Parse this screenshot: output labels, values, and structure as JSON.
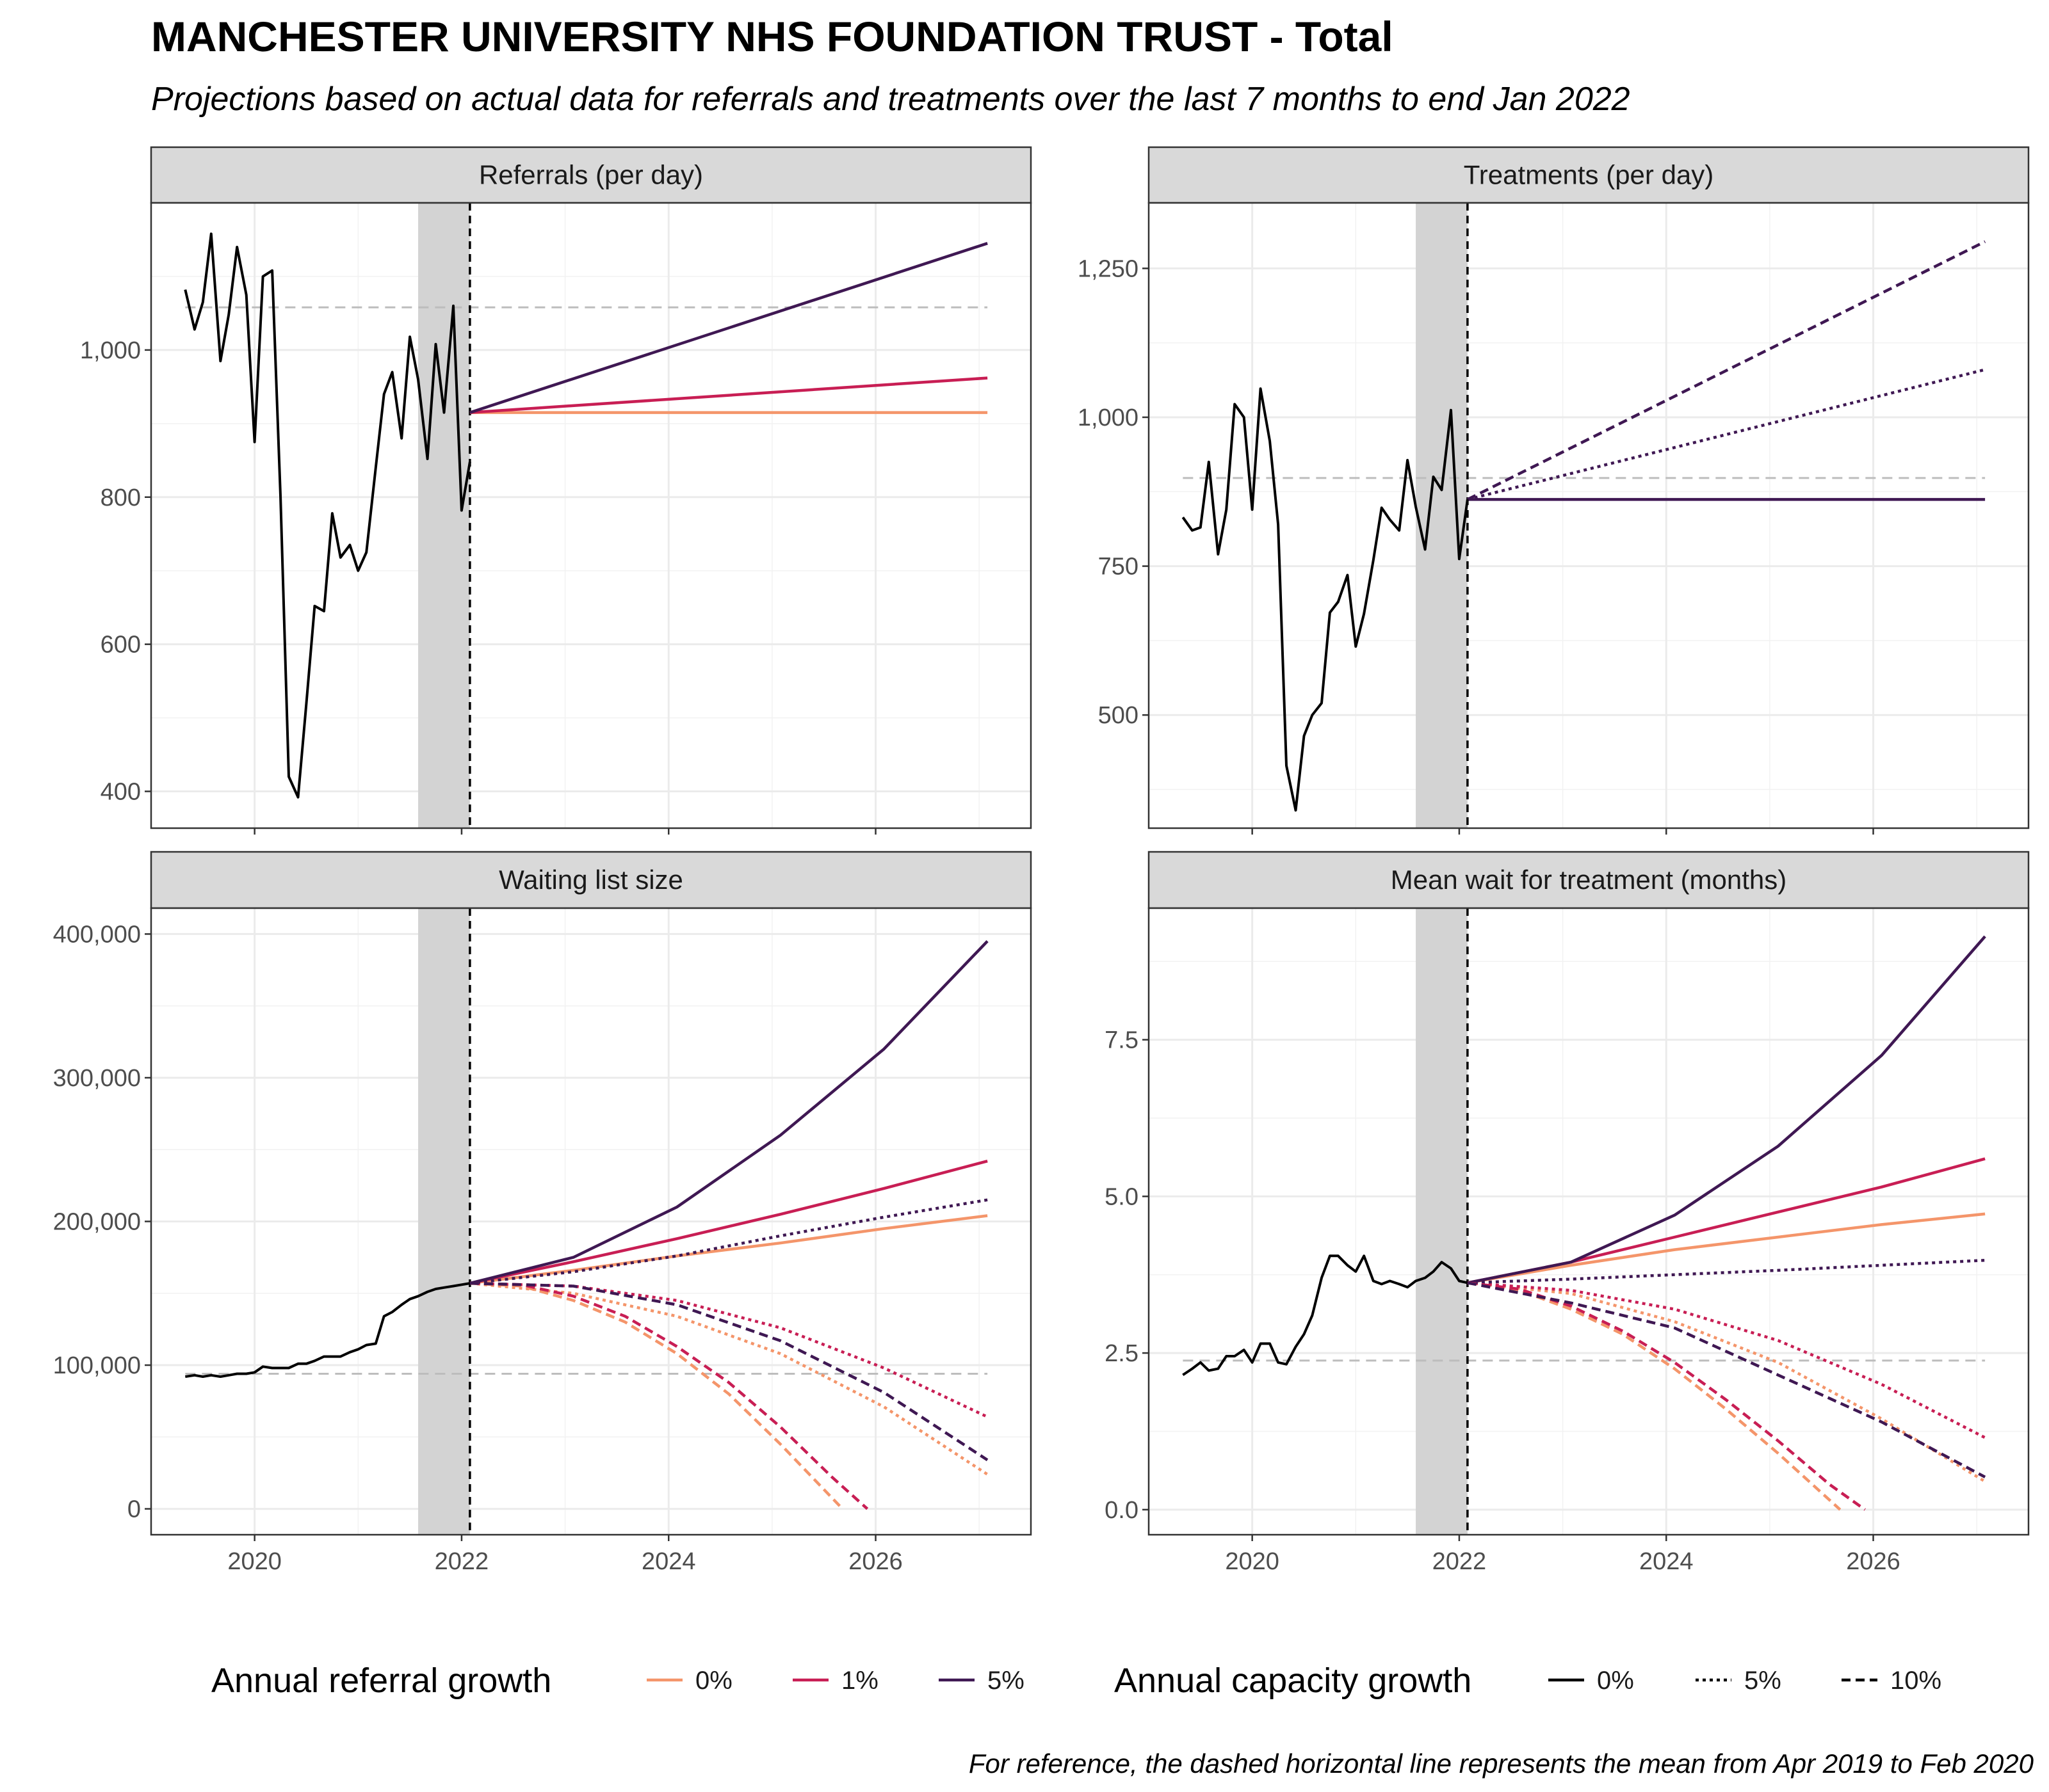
{
  "title": "MANCHESTER UNIVERSITY NHS FOUNDATION TRUST - Total",
  "subtitle": "Projections based on actual data for referrals and treatments over the last 7 months to end Jan 2022",
  "caption": "For reference, the dashed horizontal line represents the mean from Apr 2019 to Feb 2020",
  "legend": {
    "referral": {
      "title": "Annual referral growth",
      "items": [
        {
          "label": "0%",
          "color": "#F4956A"
        },
        {
          "label": "1%",
          "color": "#C81E54"
        },
        {
          "label": "5%",
          "color": "#3F1853"
        }
      ]
    },
    "capacity": {
      "title": "Annual capacity growth",
      "items": [
        {
          "label": "0%",
          "dash": "solid"
        },
        {
          "label": "5%",
          "dash": "dotted"
        },
        {
          "label": "10%",
          "dash": "dashed"
        }
      ]
    }
  },
  "chart_data": [
    {
      "type": "line",
      "title": "Referrals (per day)",
      "x_range": [
        2019.0,
        2027.5
      ],
      "ylim": [
        350,
        1200
      ],
      "x_ticks": [
        2020,
        2022,
        2024,
        2026
      ],
      "x_tick_labels": [
        "2020",
        "2022",
        "2024",
        "2026"
      ],
      "y_ticks": [
        400,
        600,
        800,
        1000
      ],
      "y_tick_labels": [
        "400",
        "600",
        "800",
        "1,000"
      ],
      "shaded_period": [
        2021.58,
        2022.08
      ],
      "projection_start": 2022.08,
      "reference_line": {
        "y": 1058,
        "x": [
          2019.33,
          2027.08
        ]
      },
      "actual": {
        "x": [
          2019.33,
          2019.42,
          2019.5,
          2019.58,
          2019.67,
          2019.75,
          2019.83,
          2019.92,
          2020.0,
          2020.08,
          2020.17,
          2020.25,
          2020.33,
          2020.42,
          2020.5,
          2020.58,
          2020.67,
          2020.75,
          2020.83,
          2020.92,
          2021.0,
          2021.08,
          2021.17,
          2021.25,
          2021.33,
          2021.42,
          2021.5,
          2021.58,
          2021.67,
          2021.75,
          2021.83,
          2021.92,
          2022.0,
          2022.08
        ],
        "y": [
          1082,
          1028,
          1065,
          1158,
          985,
          1048,
          1140,
          1075,
          875,
          1100,
          1108,
          800,
          420,
          392,
          520,
          652,
          645,
          778,
          718,
          735,
          700,
          725,
          840,
          940,
          970,
          880,
          1018,
          960,
          852,
          1008,
          915,
          1060,
          782,
          848
        ]
      },
      "projections": [
        {
          "referral_growth": "0%",
          "capacity_growth": "0%",
          "x": [
            2022.08,
            2027.08
          ],
          "y": [
            915,
            915
          ]
        },
        {
          "referral_growth": "1%",
          "capacity_growth": "0%",
          "x": [
            2022.08,
            2027.08
          ],
          "y": [
            915,
            962
          ]
        },
        {
          "referral_growth": "5%",
          "capacity_growth": "0%",
          "x": [
            2022.08,
            2027.08
          ],
          "y": [
            915,
            1145
          ]
        }
      ]
    },
    {
      "type": "line",
      "title": "Treatments (per day)",
      "x_range": [
        2019.0,
        2027.5
      ],
      "ylim": [
        310,
        1360
      ],
      "x_ticks": [
        2020,
        2022,
        2024,
        2026
      ],
      "x_tick_labels": [
        "2020",
        "2022",
        "2024",
        "2026"
      ],
      "y_ticks": [
        500,
        750,
        1000,
        1250
      ],
      "y_tick_labels": [
        "500",
        "750",
        "1,000",
        "1,250"
      ],
      "shaded_period": [
        2021.58,
        2022.08
      ],
      "projection_start": 2022.08,
      "reference_line": {
        "y": 898,
        "x": [
          2019.33,
          2027.08
        ]
      },
      "actual": {
        "x": [
          2019.33,
          2019.42,
          2019.5,
          2019.58,
          2019.67,
          2019.75,
          2019.83,
          2019.92,
          2020.0,
          2020.08,
          2020.17,
          2020.25,
          2020.33,
          2020.42,
          2020.5,
          2020.58,
          2020.67,
          2020.75,
          2020.83,
          2020.92,
          2021.0,
          2021.08,
          2021.17,
          2021.25,
          2021.33,
          2021.42,
          2021.5,
          2021.58,
          2021.67,
          2021.75,
          2021.83,
          2021.92,
          2022.0,
          2022.08
        ],
        "y": [
          832,
          810,
          815,
          925,
          770,
          845,
          1022,
          1000,
          845,
          1048,
          960,
          820,
          415,
          340,
          465,
          500,
          520,
          672,
          690,
          735,
          615,
          670,
          760,
          848,
          828,
          810,
          928,
          850,
          778,
          900,
          878,
          1012,
          762,
          862
        ]
      },
      "projections": [
        {
          "referral_growth": "5%",
          "capacity_growth": "0%",
          "x": [
            2022.08,
            2027.08
          ],
          "y": [
            862,
            862
          ]
        },
        {
          "referral_growth": "5%",
          "capacity_growth": "5%",
          "x": [
            2022.08,
            2027.08
          ],
          "y": [
            862,
            1080
          ]
        },
        {
          "referral_growth": "5%",
          "capacity_growth": "10%",
          "x": [
            2022.08,
            2027.08
          ],
          "y": [
            862,
            1295
          ]
        }
      ]
    },
    {
      "type": "line",
      "title": "Waiting list size",
      "x_range": [
        2019.0,
        2027.5
      ],
      "ylim": [
        -18000,
        418000
      ],
      "x_ticks": [
        2020,
        2022,
        2024,
        2026
      ],
      "x_tick_labels": [
        "2020",
        "2022",
        "2024",
        "2026"
      ],
      "y_ticks": [
        0,
        100000,
        200000,
        300000,
        400000
      ],
      "y_tick_labels": [
        "0",
        "100,000",
        "200,000",
        "300,000",
        "400,000"
      ],
      "shaded_period": [
        2021.58,
        2022.08
      ],
      "projection_start": 2022.08,
      "reference_line": {
        "y": 94000,
        "x": [
          2019.33,
          2027.08
        ]
      },
      "actual": {
        "x": [
          2019.33,
          2019.42,
          2019.5,
          2019.58,
          2019.67,
          2019.75,
          2019.83,
          2019.92,
          2020.0,
          2020.08,
          2020.17,
          2020.25,
          2020.33,
          2020.42,
          2020.5,
          2020.58,
          2020.67,
          2020.75,
          2020.83,
          2020.92,
          2021.0,
          2021.08,
          2021.17,
          2021.25,
          2021.33,
          2021.42,
          2021.5,
          2021.58,
          2021.67,
          2021.75,
          2021.83,
          2021.92,
          2022.0,
          2022.08
        ],
        "y": [
          92000,
          93000,
          92000,
          93000,
          92000,
          93000,
          94000,
          94000,
          95000,
          99000,
          98000,
          98000,
          98000,
          101000,
          101000,
          103000,
          106000,
          106000,
          106000,
          109000,
          111000,
          114000,
          115000,
          134000,
          137000,
          142000,
          146000,
          148000,
          151000,
          153000,
          154000,
          155000,
          156000,
          157000
        ]
      },
      "projections": [
        {
          "referral_growth": "0%",
          "capacity_growth": "0%",
          "x": [
            2022.08,
            2023.08,
            2024.08,
            2025.08,
            2026.08,
            2027.08
          ],
          "y": [
            157000,
            166000,
            176000,
            185000,
            195000,
            204000
          ]
        },
        {
          "referral_growth": "1%",
          "capacity_growth": "0%",
          "x": [
            2022.08,
            2023.08,
            2024.08,
            2025.08,
            2026.08,
            2027.08
          ],
          "y": [
            157000,
            172000,
            188000,
            205000,
            223000,
            242000
          ]
        },
        {
          "referral_growth": "5%",
          "capacity_growth": "0%",
          "x": [
            2022.08,
            2023.08,
            2024.08,
            2025.08,
            2026.08,
            2027.08
          ],
          "y": [
            157000,
            175000,
            210000,
            260000,
            320000,
            395000
          ]
        },
        {
          "referral_growth": "0%",
          "capacity_growth": "5%",
          "x": [
            2022.08,
            2023.08,
            2024.08,
            2025.08,
            2026.08,
            2027.08
          ],
          "y": [
            157000,
            150000,
            134000,
            108000,
            71000,
            24000
          ]
        },
        {
          "referral_growth": "1%",
          "capacity_growth": "5%",
          "x": [
            2022.08,
            2023.08,
            2024.08,
            2025.08,
            2026.08,
            2027.08
          ],
          "y": [
            157000,
            155000,
            145000,
            126000,
            98000,
            64000
          ]
        },
        {
          "referral_growth": "5%",
          "capacity_growth": "5%",
          "x": [
            2022.08,
            2023.08,
            2024.08,
            2025.08,
            2026.08,
            2027.08
          ],
          "y": [
            157000,
            165000,
            176000,
            190000,
            203000,
            215000
          ]
        },
        {
          "referral_growth": "0%",
          "capacity_growth": "10%",
          "x": [
            2022.08,
            2022.58,
            2023.08,
            2023.58,
            2024.08,
            2024.58,
            2025.08,
            2025.68
          ],
          "y": [
            157000,
            155000,
            145000,
            130000,
            108000,
            80000,
            45000,
            0
          ]
        },
        {
          "referral_growth": "1%",
          "capacity_growth": "10%",
          "x": [
            2022.08,
            2022.58,
            2023.08,
            2023.58,
            2024.08,
            2024.58,
            2025.08,
            2025.58,
            2025.92
          ],
          "y": [
            157000,
            156000,
            148000,
            134000,
            113000,
            88000,
            57000,
            22000,
            0
          ]
        },
        {
          "referral_growth": "5%",
          "capacity_growth": "10%",
          "x": [
            2022.08,
            2023.08,
            2024.08,
            2025.08,
            2026.08,
            2027.08
          ],
          "y": [
            157000,
            155000,
            142000,
            117000,
            81000,
            34000
          ]
        }
      ]
    },
    {
      "type": "line",
      "title": "Mean wait for treatment (months)",
      "x_range": [
        2019.0,
        2027.5
      ],
      "ylim": [
        -0.4,
        9.6
      ],
      "x_ticks": [
        2020,
        2022,
        2024,
        2026
      ],
      "x_tick_labels": [
        "2020",
        "2022",
        "2024",
        "2026"
      ],
      "y_ticks": [
        0,
        2.5,
        5,
        7.5
      ],
      "y_tick_labels": [
        "0.0",
        "2.5",
        "5.0",
        "7.5"
      ],
      "shaded_period": [
        2021.58,
        2022.08
      ],
      "projection_start": 2022.08,
      "reference_line": {
        "y": 2.38,
        "x": [
          2019.33,
          2027.08
        ]
      },
      "actual": {
        "x": [
          2019.33,
          2019.42,
          2019.5,
          2019.58,
          2019.67,
          2019.75,
          2019.83,
          2019.92,
          2020.0,
          2020.08,
          2020.17,
          2020.25,
          2020.33,
          2020.42,
          2020.5,
          2020.58,
          2020.67,
          2020.75,
          2020.83,
          2020.92,
          2021.0,
          2021.08,
          2021.17,
          2021.25,
          2021.33,
          2021.42,
          2021.5,
          2021.58,
          2021.67,
          2021.75,
          2021.83,
          2021.92,
          2022.0,
          2022.08
        ],
        "y": [
          2.15,
          2.25,
          2.35,
          2.22,
          2.25,
          2.45,
          2.45,
          2.55,
          2.35,
          2.65,
          2.65,
          2.35,
          2.32,
          2.6,
          2.8,
          3.1,
          3.7,
          4.05,
          4.05,
          3.9,
          3.8,
          4.05,
          3.65,
          3.6,
          3.65,
          3.6,
          3.55,
          3.65,
          3.7,
          3.8,
          3.95,
          3.85,
          3.65,
          3.62
        ]
      },
      "projections": [
        {
          "referral_growth": "0%",
          "capacity_growth": "0%",
          "x": [
            2022.08,
            2023.08,
            2024.08,
            2025.08,
            2026.08,
            2027.08
          ],
          "y": [
            3.62,
            3.9,
            4.15,
            4.35,
            4.55,
            4.72
          ]
        },
        {
          "referral_growth": "1%",
          "capacity_growth": "0%",
          "x": [
            2022.08,
            2023.08,
            2024.08,
            2025.08,
            2026.08,
            2027.08
          ],
          "y": [
            3.62,
            3.95,
            4.35,
            4.75,
            5.15,
            5.6
          ]
        },
        {
          "referral_growth": "5%",
          "capacity_growth": "0%",
          "x": [
            2022.08,
            2023.08,
            2024.08,
            2025.08,
            2026.08,
            2027.08
          ],
          "y": [
            3.62,
            3.95,
            4.7,
            5.8,
            7.25,
            9.15
          ]
        },
        {
          "referral_growth": "0%",
          "capacity_growth": "5%",
          "x": [
            2022.08,
            2023.08,
            2024.08,
            2025.08,
            2026.08,
            2027.08
          ],
          "y": [
            3.62,
            3.45,
            3.0,
            2.35,
            1.45,
            0.45
          ]
        },
        {
          "referral_growth": "1%",
          "capacity_growth": "5%",
          "x": [
            2022.08,
            2023.08,
            2024.08,
            2025.08,
            2026.08,
            2027.08
          ],
          "y": [
            3.62,
            3.5,
            3.2,
            2.7,
            2.0,
            1.15
          ]
        },
        {
          "referral_growth": "5%",
          "capacity_growth": "5%",
          "x": [
            2022.08,
            2023.08,
            2024.08,
            2025.08,
            2026.08,
            2027.08
          ],
          "y": [
            3.62,
            3.68,
            3.75,
            3.82,
            3.9,
            3.98
          ]
        },
        {
          "referral_growth": "0%",
          "capacity_growth": "10%",
          "x": [
            2022.08,
            2022.58,
            2023.08,
            2023.58,
            2024.08,
            2024.58,
            2025.08,
            2025.68
          ],
          "y": [
            3.62,
            3.5,
            3.2,
            2.8,
            2.25,
            1.6,
            0.9,
            0
          ]
        },
        {
          "referral_growth": "1%",
          "capacity_growth": "10%",
          "x": [
            2022.08,
            2022.58,
            2023.08,
            2023.58,
            2024.08,
            2024.58,
            2025.08,
            2025.58,
            2025.92
          ],
          "y": [
            3.62,
            3.52,
            3.25,
            2.85,
            2.35,
            1.75,
            1.1,
            0.4,
            0
          ]
        },
        {
          "referral_growth": "5%",
          "capacity_growth": "10%",
          "x": [
            2022.08,
            2023.08,
            2024.08,
            2025.08,
            2026.08,
            2027.08
          ],
          "y": [
            3.62,
            3.3,
            2.9,
            2.15,
            1.4,
            0.52
          ]
        }
      ]
    }
  ]
}
